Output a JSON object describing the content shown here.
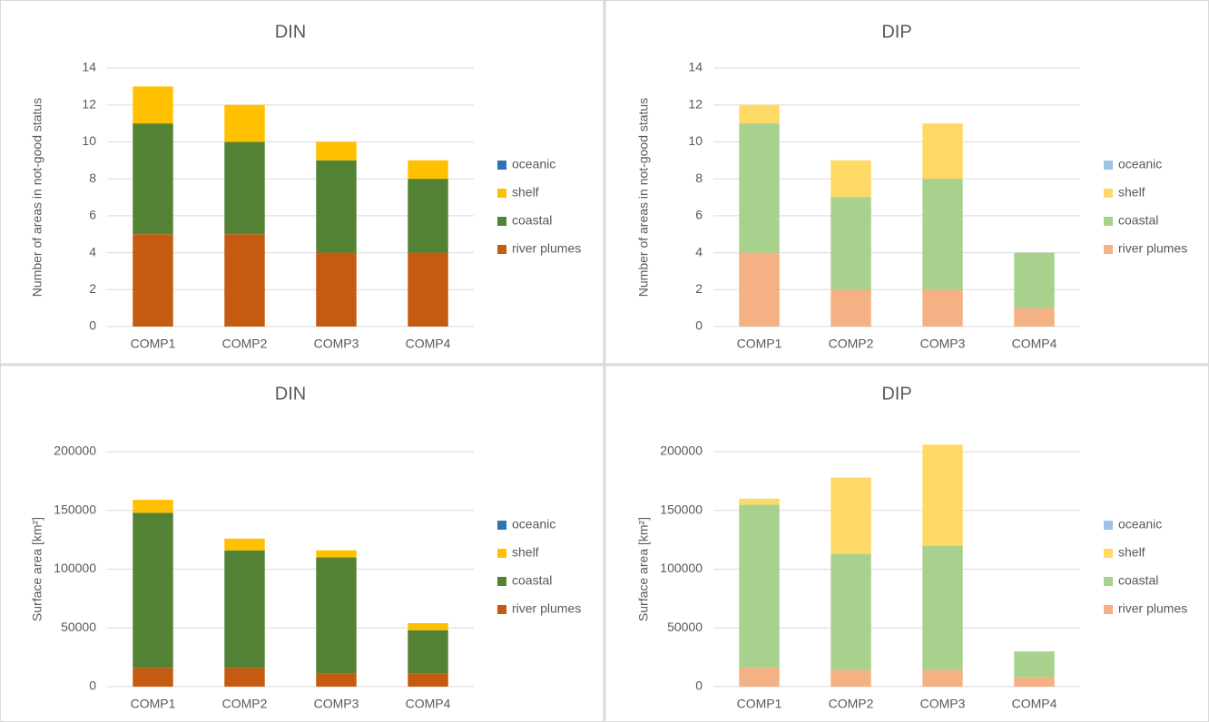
{
  "chart_data": [
    {
      "type": "bar",
      "stacked": true,
      "title": "DIN",
      "y_label": "Number of areas in not-good status",
      "categories": [
        "COMP1",
        "COMP2",
        "COMP3",
        "COMP4"
      ],
      "series": [
        {
          "name": "river plumes",
          "color": "#c55a11",
          "values": [
            5,
            5,
            4,
            4
          ]
        },
        {
          "name": "coastal",
          "color": "#548235",
          "values": [
            6,
            5,
            5,
            4
          ]
        },
        {
          "name": "shelf",
          "color": "#ffc000",
          "values": [
            2,
            2,
            1,
            1
          ]
        },
        {
          "name": "oceanic",
          "color": "#2e75b6",
          "values": [
            0,
            0,
            0,
            0
          ]
        }
      ],
      "ylim": [
        0,
        14
      ],
      "yticks": [
        0,
        2,
        4,
        6,
        8,
        10,
        12,
        14
      ],
      "grid": true,
      "legend": "right"
    },
    {
      "type": "bar",
      "stacked": true,
      "title": "DIP",
      "y_label": "Number of areas in not-good status",
      "categories": [
        "COMP1",
        "COMP2",
        "COMP3",
        "COMP4"
      ],
      "series": [
        {
          "name": "river plumes",
          "color": "#f4b183",
          "values": [
            4,
            2,
            2,
            1
          ]
        },
        {
          "name": "coastal",
          "color": "#a9d18e",
          "values": [
            7,
            5,
            6,
            3
          ]
        },
        {
          "name": "shelf",
          "color": "#ffd966",
          "values": [
            1,
            2,
            3,
            0
          ]
        },
        {
          "name": "oceanic",
          "color": "#9dc3e6",
          "values": [
            0,
            0,
            0,
            0
          ]
        }
      ],
      "ylim": [
        0,
        14
      ],
      "yticks": [
        0,
        2,
        4,
        6,
        8,
        10,
        12,
        14
      ],
      "grid": true,
      "legend": "right"
    },
    {
      "type": "bar",
      "stacked": true,
      "title": "DIN",
      "y_label": "Surface area [km²]",
      "categories": [
        "COMP1",
        "COMP2",
        "COMP3",
        "COMP4"
      ],
      "series": [
        {
          "name": "river plumes",
          "color": "#c55a11",
          "values": [
            16000,
            16000,
            11000,
            11000
          ]
        },
        {
          "name": "coastal",
          "color": "#548235",
          "values": [
            132000,
            100000,
            99000,
            37000
          ]
        },
        {
          "name": "shelf",
          "color": "#ffc000",
          "values": [
            11000,
            10000,
            6000,
            6000
          ]
        },
        {
          "name": "oceanic",
          "color": "#2e75b6",
          "values": [
            0,
            0,
            0,
            0
          ]
        }
      ],
      "ylim": [
        0,
        200000
      ],
      "yticks": [
        0,
        50000,
        100000,
        150000,
        200000
      ],
      "grid": true,
      "legend": "right"
    },
    {
      "type": "bar",
      "stacked": true,
      "title": "DIP",
      "y_label": "Surface area [km²]",
      "categories": [
        "COMP1",
        "COMP2",
        "COMP3",
        "COMP4"
      ],
      "series": [
        {
          "name": "river plumes",
          "color": "#f4b183",
          "values": [
            16000,
            14000,
            14000,
            8000
          ]
        },
        {
          "name": "coastal",
          "color": "#a9d18e",
          "values": [
            139000,
            99000,
            106000,
            22000
          ]
        },
        {
          "name": "shelf",
          "color": "#ffd966",
          "values": [
            5000,
            65000,
            86000,
            0
          ]
        },
        {
          "name": "oceanic",
          "color": "#9dc3e6",
          "values": [
            0,
            0,
            0,
            0
          ]
        }
      ],
      "ylim": [
        0,
        200000
      ],
      "yticks": [
        0,
        50000,
        100000,
        150000,
        200000
      ],
      "grid": true,
      "legend": "right"
    }
  ]
}
